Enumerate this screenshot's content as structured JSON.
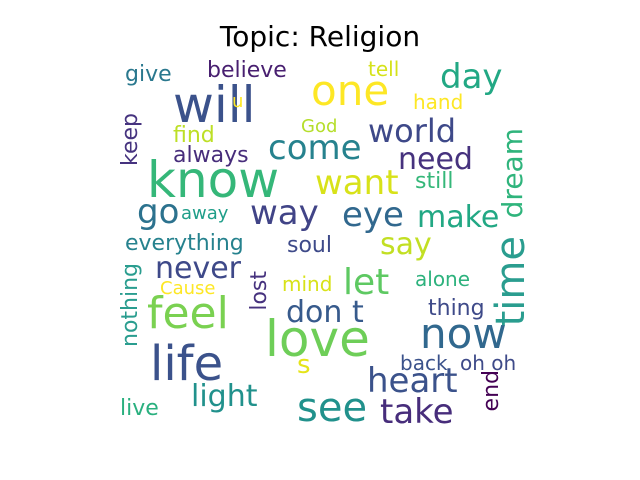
{
  "title": "Topic: Religion",
  "words": [
    {
      "text": "will",
      "color": "#3b528b"
    },
    {
      "text": "know",
      "color": "#35b779"
    },
    {
      "text": "love",
      "color": "#6ece58"
    },
    {
      "text": "life",
      "color": "#3b528b"
    },
    {
      "text": "one",
      "color": "#fde725"
    },
    {
      "text": "now",
      "color": "#31688e"
    },
    {
      "text": "feel",
      "color": "#7ad151"
    },
    {
      "text": "see",
      "color": "#21918c"
    },
    {
      "text": "time",
      "color": "#2a9d8f"
    },
    {
      "text": "dream",
      "color": "#2fb47c"
    },
    {
      "text": "world",
      "color": "#3e4989"
    },
    {
      "text": "come",
      "color": "#26828e"
    },
    {
      "text": "want",
      "color": "#d8e219"
    },
    {
      "text": "day",
      "color": "#22a884"
    },
    {
      "text": "way",
      "color": "#414487"
    },
    {
      "text": "eye",
      "color": "#31688e"
    },
    {
      "text": "go",
      "color": "#2c728e"
    },
    {
      "text": "make",
      "color": "#22a884"
    },
    {
      "text": "say",
      "color": "#c2df23"
    },
    {
      "text": "need",
      "color": "#46327e"
    },
    {
      "text": "let",
      "color": "#5ec962"
    },
    {
      "text": "never",
      "color": "#3e4989"
    },
    {
      "text": "don t",
      "color": "#375a8c"
    },
    {
      "text": "heart",
      "color": "#3b528b"
    },
    {
      "text": "take",
      "color": "#472d7b"
    },
    {
      "text": "light",
      "color": "#21918c"
    },
    {
      "text": "believe",
      "color": "#481f70"
    },
    {
      "text": "give",
      "color": "#2a788e"
    },
    {
      "text": "tell",
      "color": "#d5e21a"
    },
    {
      "text": "hand",
      "color": "#fde725"
    },
    {
      "text": "u",
      "color": "#fde725"
    },
    {
      "text": "God",
      "color": "#b5de2b"
    },
    {
      "text": "find",
      "color": "#bddf26"
    },
    {
      "text": "always",
      "color": "#472d7b"
    },
    {
      "text": "keep",
      "color": "#46337f"
    },
    {
      "text": "still",
      "color": "#35b779"
    },
    {
      "text": "away",
      "color": "#1f9e89"
    },
    {
      "text": "everything",
      "color": "#26828e"
    },
    {
      "text": "soul",
      "color": "#3e4a89"
    },
    {
      "text": "nothing",
      "color": "#2a9d8f"
    },
    {
      "text": "Cause",
      "color": "#fde725"
    },
    {
      "text": "mind",
      "color": "#d8e219"
    },
    {
      "text": "lost",
      "color": "#46327e"
    },
    {
      "text": "alone",
      "color": "#2db27d"
    },
    {
      "text": "thing",
      "color": "#3e4a89"
    },
    {
      "text": "s",
      "color": "#e5e419"
    },
    {
      "text": "back",
      "color": "#3b528b"
    },
    {
      "text": "oh oh",
      "color": "#3e4a89"
    },
    {
      "text": "end",
      "color": "#440154"
    },
    {
      "text": "live",
      "color": "#2ab07f"
    }
  ]
}
